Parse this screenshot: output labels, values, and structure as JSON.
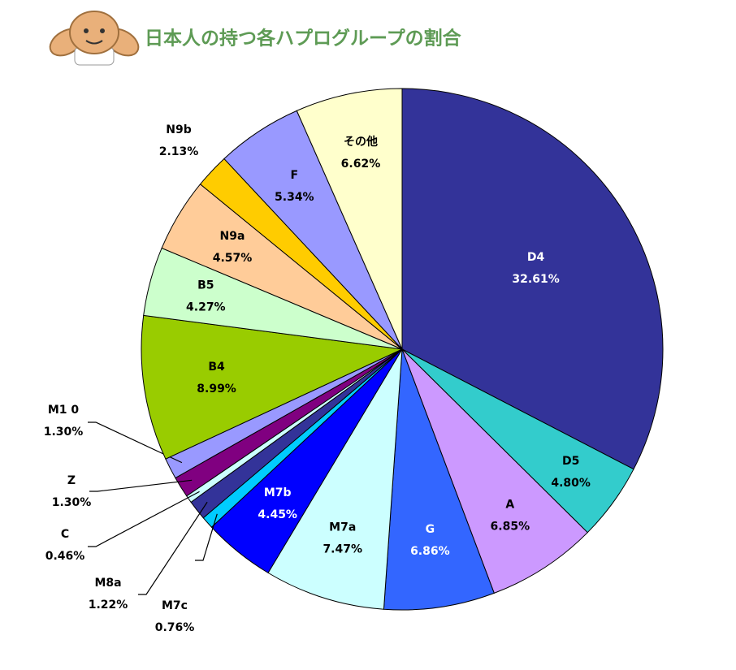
{
  "chart_data": {
    "type": "pie",
    "title": "日本人の持つ各ハプログループの割合",
    "categories": [
      "D4",
      "D5",
      "A",
      "G",
      "M7a",
      "M7b",
      "M7c",
      "M8a",
      "C",
      "Z",
      "M1 0",
      "B4",
      "B5",
      "N9a",
      "N9b",
      "F",
      "その他"
    ],
    "values": [
      32.61,
      4.8,
      6.85,
      6.86,
      7.47,
      4.45,
      0.76,
      1.22,
      0.46,
      1.3,
      1.3,
      8.99,
      4.27,
      4.57,
      2.13,
      5.34,
      6.62
    ],
    "value_labels": [
      "32.61%",
      "4.80%",
      "6.85%",
      "6.86%",
      "7.47%",
      "4.45%",
      "0.76%",
      "1.22%",
      "0.46%",
      "1.30%",
      "1.30%",
      "8.99%",
      "4.27%",
      "4.57%",
      "2.13%",
      "5.34%",
      "6.62%"
    ],
    "colors": [
      "#333399",
      "#33cccc",
      "#cc99ff",
      "#3366ff",
      "#ccffff",
      "#0000ff",
      "#00ccff",
      "#333399",
      "#ccffff",
      "#800080",
      "#9999ff",
      "#99cc00",
      "#ccffcc",
      "#ffcc99",
      "#ffcc00",
      "#9999ff",
      "#ffffcc"
    ]
  }
}
